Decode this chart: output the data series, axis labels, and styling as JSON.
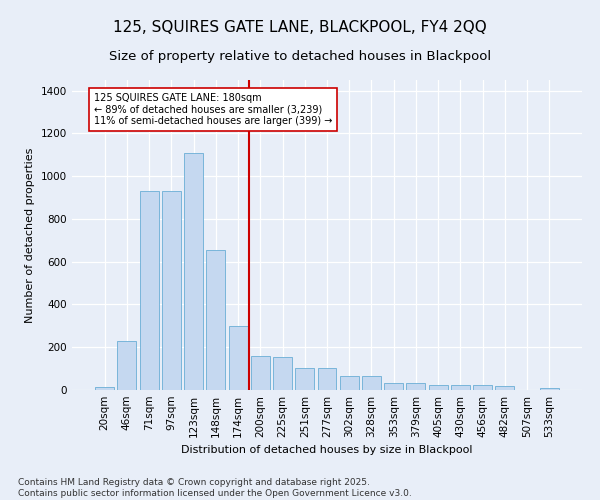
{
  "title": "125, SQUIRES GATE LANE, BLACKPOOL, FY4 2QQ",
  "subtitle": "Size of property relative to detached houses in Blackpool",
  "xlabel": "Distribution of detached houses by size in Blackpool",
  "ylabel": "Number of detached properties",
  "categories": [
    "20sqm",
    "46sqm",
    "71sqm",
    "97sqm",
    "123sqm",
    "148sqm",
    "174sqm",
    "200sqm",
    "225sqm",
    "251sqm",
    "277sqm",
    "302sqm",
    "328sqm",
    "353sqm",
    "379sqm",
    "405sqm",
    "430sqm",
    "456sqm",
    "482sqm",
    "507sqm",
    "533sqm"
  ],
  "values": [
    15,
    230,
    930,
    930,
    1110,
    655,
    300,
    160,
    155,
    105,
    105,
    65,
    65,
    35,
    35,
    25,
    25,
    25,
    20,
    0,
    10
  ],
  "bar_color": "#c5d8f0",
  "bar_edge_color": "#6aaed6",
  "vline_index": 6,
  "vline_color": "#cc0000",
  "annotation_text": "125 SQUIRES GATE LANE: 180sqm\n← 89% of detached houses are smaller (3,239)\n11% of semi-detached houses are larger (399) →",
  "annotation_box_color": "#ffffff",
  "annotation_box_edge": "#cc0000",
  "footnote": "Contains HM Land Registry data © Crown copyright and database right 2025.\nContains public sector information licensed under the Open Government Licence v3.0.",
  "ylim": [
    0,
    1450
  ],
  "bg_color": "#e8eef8",
  "title_fontsize": 11,
  "subtitle_fontsize": 9.5,
  "axis_label_fontsize": 8,
  "tick_fontsize": 7.5,
  "footnote_fontsize": 6.5
}
